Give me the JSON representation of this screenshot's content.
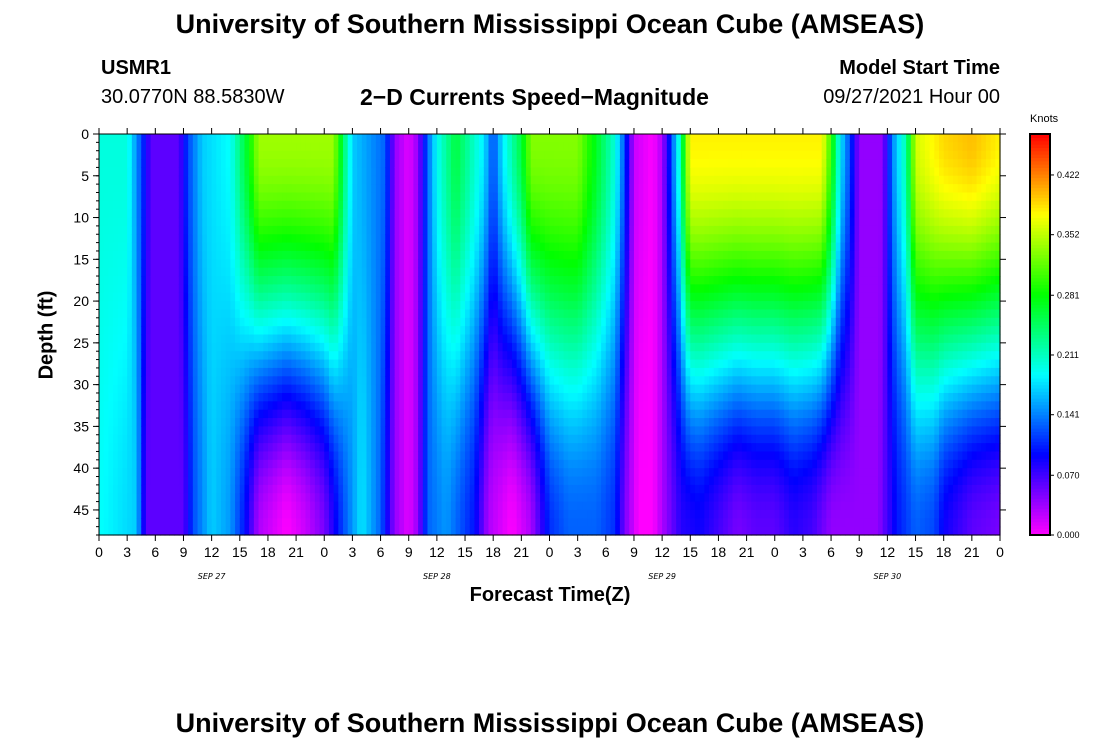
{
  "header": {
    "title": "University of Southern Mississippi Ocean Cube (AMSEAS)",
    "station": "USMR1",
    "coords": "30.0770N  88.5830W",
    "subtitle": "2−D Currents Speed−Magnitude",
    "start_label": "Model Start Time",
    "start_value": "09/27/2021 Hour 00"
  },
  "footer": {
    "title": "University of Southern Mississippi Ocean Cube (AMSEAS)"
  },
  "chart_data": {
    "type": "heatmap",
    "xlabel": "Forecast Time(Z)",
    "ylabel": "Depth (ft)",
    "x_range_hours": [
      0,
      96
    ],
    "x_tick_step_hours": 3,
    "x_tick_labels": [
      "0",
      "3",
      "6",
      "9",
      "12",
      "15",
      "18",
      "21",
      "0",
      "3",
      "6",
      "9",
      "12",
      "15",
      "18",
      "21",
      "0",
      "3",
      "6",
      "9",
      "12",
      "15",
      "18",
      "21",
      "0",
      "3",
      "6",
      "9",
      "12",
      "15",
      "18",
      "21",
      "0"
    ],
    "date_labels": [
      "SEP 27",
      "SEP 28",
      "SEP 29",
      "SEP 30"
    ],
    "date_label_hours": [
      12,
      36,
      60,
      84
    ],
    "y_range_ft": [
      0,
      48
    ],
    "y_ticks": [
      0,
      5,
      10,
      15,
      20,
      25,
      30,
      35,
      40,
      45
    ],
    "colorbar": {
      "unit": "Knots",
      "range": [
        0.0,
        0.47
      ],
      "tick_values": [
        0.0,
        0.07,
        0.141,
        0.211,
        0.281,
        0.352,
        0.422
      ],
      "tick_labels": [
        "0.000",
        "0.070",
        "0.141",
        "0.211",
        "0.281",
        "0.352",
        "0.422"
      ]
    },
    "surface_speed_by_hour": [
      [
        0,
        0.2
      ],
      [
        3,
        0.2
      ],
      [
        4.5,
        0.12
      ],
      [
        5.5,
        0.06
      ],
      [
        8.5,
        0.06
      ],
      [
        9.5,
        0.12
      ],
      [
        11,
        0.17
      ],
      [
        14,
        0.19
      ],
      [
        16,
        0.28
      ],
      [
        17,
        0.34
      ],
      [
        25,
        0.34
      ],
      [
        26,
        0.25
      ],
      [
        27,
        0.17
      ],
      [
        30.5,
        0.13
      ],
      [
        31.5,
        0.04
      ],
      [
        33,
        0.01
      ],
      [
        34,
        0.04
      ],
      [
        35,
        0.13
      ],
      [
        36,
        0.19
      ],
      [
        38,
        0.26
      ],
      [
        41,
        0.18
      ],
      [
        42,
        0.12
      ],
      [
        43,
        0.18
      ],
      [
        45,
        0.26
      ],
      [
        46,
        0.33
      ],
      [
        51,
        0.33
      ],
      [
        53,
        0.27
      ],
      [
        55,
        0.2
      ],
      [
        56,
        0.12
      ],
      [
        57,
        0.02
      ],
      [
        59,
        0.0
      ],
      [
        60,
        0.03
      ],
      [
        61,
        0.12
      ],
      [
        62,
        0.22
      ],
      [
        62.5,
        0.32
      ],
      [
        63,
        0.38
      ],
      [
        77,
        0.38
      ],
      [
        78,
        0.3
      ],
      [
        79,
        0.18
      ],
      [
        80,
        0.12
      ],
      [
        81,
        0.04
      ],
      [
        83.5,
        0.04
      ],
      [
        84.5,
        0.14
      ],
      [
        86,
        0.22
      ],
      [
        87,
        0.36
      ],
      [
        90,
        0.39
      ],
      [
        93,
        0.4
      ],
      [
        96,
        0.38
      ]
    ],
    "speed_at_48ft_by_hour": [
      [
        0,
        0.19
      ],
      [
        4,
        0.17
      ],
      [
        5,
        0.06
      ],
      [
        9,
        0.06
      ],
      [
        10,
        0.12
      ],
      [
        12,
        0.17
      ],
      [
        14,
        0.15
      ],
      [
        15.5,
        0.1
      ],
      [
        17,
        0.03
      ],
      [
        20,
        0.0
      ],
      [
        22,
        0.02
      ],
      [
        24,
        0.05
      ],
      [
        26,
        0.12
      ],
      [
        28,
        0.18
      ],
      [
        30,
        0.13
      ],
      [
        31.5,
        0.04
      ],
      [
        33,
        0.01
      ],
      [
        34,
        0.04
      ],
      [
        35,
        0.13
      ],
      [
        37,
        0.15
      ],
      [
        40,
        0.1
      ],
      [
        41.5,
        0.03
      ],
      [
        44,
        0.0
      ],
      [
        46,
        0.03
      ],
      [
        48,
        0.11
      ],
      [
        50,
        0.13
      ],
      [
        53,
        0.13
      ],
      [
        55,
        0.11
      ],
      [
        56,
        0.05
      ],
      [
        57.5,
        0.0
      ],
      [
        59,
        0.0
      ],
      [
        60,
        0.03
      ],
      [
        62,
        0.08
      ],
      [
        64,
        0.09
      ],
      [
        66,
        0.07
      ],
      [
        68,
        0.05
      ],
      [
        70,
        0.06
      ],
      [
        72,
        0.06
      ],
      [
        74,
        0.08
      ],
      [
        76,
        0.07
      ],
      [
        78,
        0.04
      ],
      [
        81,
        0.04
      ],
      [
        83,
        0.04
      ],
      [
        85,
        0.1
      ],
      [
        87,
        0.13
      ],
      [
        89,
        0.12
      ],
      [
        90,
        0.09
      ],
      [
        93,
        0.06
      ],
      [
        96,
        0.05
      ]
    ]
  }
}
